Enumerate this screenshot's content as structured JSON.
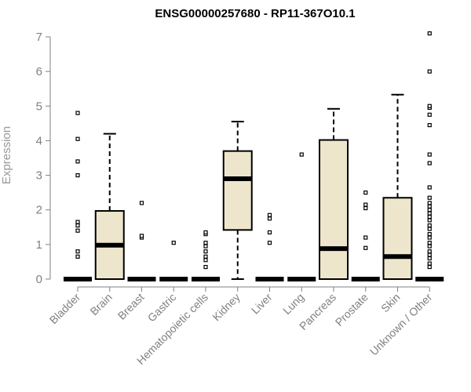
{
  "chart_data": {
    "type": "boxplot",
    "title": "ENSG00000257680 - RP11-367O10.1",
    "xlabel": "",
    "ylabel": "Expression",
    "ylim": [
      0,
      7
    ],
    "yticks": [
      0,
      1,
      2,
      3,
      4,
      5,
      6,
      7
    ],
    "grid": false,
    "legend": "none",
    "box_fill": "#ede6cc",
    "stroke": "#000000",
    "categories": [
      "Bladder",
      "Brain",
      "Breast",
      "Gastric",
      "Hematopoietic cells",
      "Kidney",
      "Liver",
      "Lung",
      "Pancreas",
      "Prostate",
      "Skin",
      "Unknown / Other"
    ],
    "boxes": [
      {
        "category": "Bladder",
        "whisker_low": 0,
        "q1": 0,
        "median": 0,
        "q3": 0,
        "whisker_high": 0,
        "outliers": [
          0.65,
          0.8,
          1.4,
          1.55,
          1.65,
          3.0,
          3.4,
          4.05,
          4.8
        ]
      },
      {
        "category": "Brain",
        "whisker_low": 0,
        "q1": 0,
        "median": 0.98,
        "q3": 1.97,
        "whisker_high": 4.2,
        "outliers": []
      },
      {
        "category": "Breast",
        "whisker_low": 0,
        "q1": 0,
        "median": 0,
        "q3": 0,
        "whisker_high": 0,
        "outliers": [
          1.2,
          1.25,
          2.2
        ]
      },
      {
        "category": "Gastric",
        "whisker_low": 0,
        "q1": 0,
        "median": 0,
        "q3": 0,
        "whisker_high": 0,
        "outliers": [
          1.05
        ]
      },
      {
        "category": "Hematopoietic cells",
        "whisker_low": 0,
        "q1": 0,
        "median": 0,
        "q3": 0,
        "whisker_high": 0,
        "outliers": [
          0.35,
          0.55,
          0.65,
          0.8,
          0.95,
          1.05,
          1.3,
          1.35
        ]
      },
      {
        "category": "Kidney",
        "whisker_low": 0,
        "q1": 1.42,
        "median": 2.9,
        "q3": 3.7,
        "whisker_high": 4.55,
        "outliers": []
      },
      {
        "category": "Liver",
        "whisker_low": 0,
        "q1": 0,
        "median": 0,
        "q3": 0,
        "whisker_high": 0,
        "outliers": [
          1.05,
          1.35,
          1.75,
          1.85
        ]
      },
      {
        "category": "Lung",
        "whisker_low": 0,
        "q1": 0,
        "median": 0,
        "q3": 0,
        "whisker_high": 0,
        "outliers": [
          3.6
        ]
      },
      {
        "category": "Pancreas",
        "whisker_low": 0,
        "q1": 0,
        "median": 0.88,
        "q3": 4.02,
        "whisker_high": 4.92,
        "outliers": []
      },
      {
        "category": "Prostate",
        "whisker_low": 0,
        "q1": 0,
        "median": 0,
        "q3": 0,
        "whisker_high": 0,
        "outliers": [
          0.9,
          1.2,
          2.05,
          2.15,
          2.5
        ]
      },
      {
        "category": "Skin",
        "whisker_low": 0,
        "q1": 0,
        "median": 0.65,
        "q3": 2.35,
        "whisker_high": 5.33,
        "outliers": []
      },
      {
        "category": "Unknown / Other",
        "whisker_low": 0,
        "q1": 0,
        "median": 0,
        "q3": 0,
        "whisker_high": 0,
        "outliers": [
          0.35,
          0.45,
          0.6,
          0.7,
          0.8,
          0.95,
          1.05,
          1.2,
          1.3,
          1.45,
          1.55,
          1.7,
          1.8,
          1.9,
          2.0,
          2.1,
          2.2,
          2.35,
          2.65,
          3.35,
          3.6,
          4.45,
          4.75,
          4.95,
          5.0,
          6.0,
          7.1
        ]
      }
    ]
  }
}
